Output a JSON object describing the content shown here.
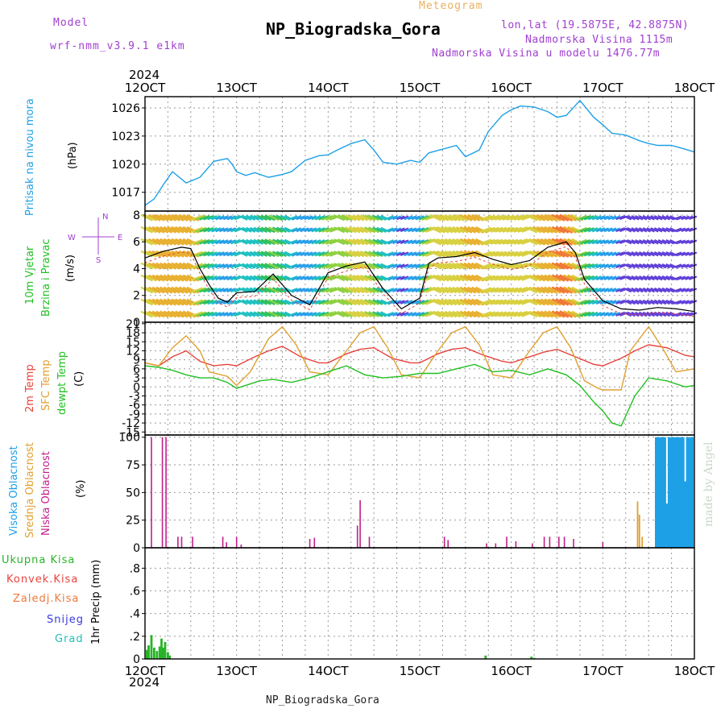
{
  "header": {
    "model_label": "Model",
    "model_name": "wrf-nmm_v3.9.1 e1km",
    "meteogram_label": "Meteogram",
    "title": "NP_Biogradska_Gora",
    "lonlat": "lon,lat (19.5875E, 42.8875N)",
    "altitude": "Nadmorska Visina 1115m",
    "model_altitude": "Nadmorska Visina u modelu 1476.77m",
    "footer_title": "NP_Biogradska_Gora",
    "watermark": "made by Angel",
    "year": "2024"
  },
  "colors": {
    "pressure": "#1ea0e6",
    "temp2m": "#e8423c",
    "sfc": "#e0a030",
    "dewpt": "#20c020",
    "high_cloud": "#1ea0e6",
    "mid_cloud": "#e0a030",
    "low_cloud": "#c0208a",
    "precip_total": "#28b428",
    "precip_conv": "#e8423c",
    "precip_frozen": "#f07838",
    "precip_snow": "#3838e0",
    "precip_hail": "#20c0b8",
    "title_purple": "#a040d0",
    "orange": "#e8b060"
  },
  "x_ticks": [
    "12OCT",
    "13OCT",
    "14OCT",
    "15OCT",
    "16OCT",
    "17OCT",
    "18OCT"
  ],
  "chart_data": [
    {
      "type": "line",
      "panel": "pressure",
      "ylabel_lines": [
        "Pritisak na nivou mora",
        "(hPa)"
      ],
      "yticks": [
        1017,
        1020,
        1023,
        1026
      ],
      "ylim": [
        1015,
        1027.2
      ],
      "xlim_days": [
        12,
        18
      ],
      "series": [
        {
          "x": [
            12.0,
            12.1,
            12.2,
            12.3,
            12.45,
            12.5,
            12.6,
            12.75,
            12.9,
            12.95,
            13.0,
            13.1,
            13.2,
            13.35,
            13.5,
            13.6,
            13.75,
            13.9,
            14.0,
            14.1,
            14.25,
            14.4,
            14.5,
            14.6,
            14.75,
            14.9,
            15.0,
            15.1,
            15.25,
            15.4,
            15.5,
            15.65,
            15.75,
            15.9,
            16.0,
            16.1,
            16.25,
            16.4,
            16.5,
            16.6,
            16.75,
            16.9,
            17.0,
            17.1,
            17.25,
            17.4,
            17.5,
            17.6,
            17.75,
            17.9,
            18.0
          ],
          "y": [
            1015.6,
            1016.3,
            1017.8,
            1019.2,
            1018.0,
            1018.2,
            1018.6,
            1020.3,
            1020.6,
            1020.0,
            1019.2,
            1018.8,
            1019.1,
            1018.6,
            1018.9,
            1019.2,
            1020.4,
            1020.9,
            1021.0,
            1021.5,
            1022.2,
            1022.6,
            1021.5,
            1020.2,
            1020.0,
            1020.4,
            1020.2,
            1021.2,
            1021.6,
            1022.0,
            1020.8,
            1021.5,
            1023.5,
            1025.2,
            1025.8,
            1026.2,
            1026.1,
            1025.6,
            1025.0,
            1025.2,
            1026.8,
            1025.0,
            1024.2,
            1023.3,
            1023.1,
            1022.5,
            1022.2,
            1022.0,
            1022.0,
            1021.6,
            1021.3
          ]
        }
      ]
    },
    {
      "type": "line",
      "panel": "wind",
      "ylabel_lines": [
        "10m Vjetar",
        "Brzina i Pravac",
        "(m/s)"
      ],
      "compass": [
        "N",
        "E",
        "S",
        "W"
      ],
      "yticks": [
        0,
        2,
        4,
        6,
        8
      ],
      "ylim": [
        0,
        8.3
      ],
      "series": [
        {
          "name": "speed",
          "x": [
            12.0,
            12.2,
            12.4,
            12.5,
            12.6,
            12.7,
            12.8,
            12.9,
            13.0,
            13.2,
            13.4,
            13.6,
            13.8,
            14.0,
            14.2,
            14.4,
            14.6,
            14.8,
            15.0,
            15.1,
            15.2,
            15.4,
            15.6,
            15.8,
            16.0,
            16.2,
            16.4,
            16.6,
            16.7,
            16.8,
            17.0,
            17.2,
            17.4,
            17.6,
            17.8,
            18.0
          ],
          "y": [
            4.8,
            5.3,
            5.6,
            5.5,
            4.0,
            2.8,
            1.8,
            1.5,
            2.2,
            2.3,
            3.6,
            2.0,
            1.3,
            3.7,
            4.2,
            4.5,
            2.5,
            1.0,
            1.8,
            4.4,
            4.8,
            4.9,
            5.2,
            4.7,
            4.3,
            4.6,
            5.6,
            6.0,
            5.2,
            3.2,
            1.6,
            1.0,
            0.9,
            1.1,
            1.0,
            0.8
          ]
        }
      ]
    },
    {
      "type": "line",
      "panel": "temperature",
      "ylabel_lines": [
        "2m Temp",
        "SFC Temp",
        "dewpt Temp",
        "(C)"
      ],
      "yticks": [
        -15,
        -12,
        -9,
        -6,
        -3,
        0,
        3,
        6,
        9,
        12,
        15,
        18,
        21
      ],
      "ylim": [
        -16,
        21.5
      ],
      "series": [
        {
          "name": "2m Temp",
          "x": [
            12.0,
            12.15,
            12.3,
            12.45,
            12.6,
            12.75,
            12.9,
            13.0,
            13.2,
            13.35,
            13.5,
            13.7,
            13.9,
            14.0,
            14.2,
            14.35,
            14.5,
            14.7,
            14.9,
            15.0,
            15.2,
            15.35,
            15.5,
            15.7,
            15.9,
            16.0,
            16.2,
            16.35,
            16.5,
            16.7,
            16.9,
            17.0,
            17.2,
            17.35,
            17.5,
            17.7,
            17.9,
            18.0
          ],
          "y": [
            8,
            7,
            10,
            12,
            8.5,
            7,
            7.5,
            7,
            10,
            12,
            13.5,
            10,
            8,
            8,
            11,
            12.5,
            13,
            9.5,
            8,
            8,
            11,
            12.5,
            13,
            10.5,
            8.5,
            8,
            10,
            11.5,
            12.5,
            10,
            7.5,
            7,
            9.5,
            12,
            14,
            13,
            10.5,
            10
          ]
        },
        {
          "name": "SFC Temp",
          "x": [
            12.0,
            12.15,
            12.3,
            12.45,
            12.6,
            12.7,
            12.9,
            13.0,
            13.15,
            13.35,
            13.5,
            13.65,
            13.8,
            14.0,
            14.2,
            14.35,
            14.5,
            14.65,
            14.8,
            15.0,
            15.2,
            15.35,
            15.5,
            15.65,
            15.8,
            16.0,
            16.2,
            16.35,
            16.5,
            16.65,
            16.8,
            16.95,
            17.0,
            17.2,
            17.3,
            17.5,
            17.65,
            17.8,
            18.0
          ],
          "y": [
            8,
            7,
            13,
            17,
            12,
            5,
            3.5,
            0.5,
            5,
            16,
            20,
            14,
            5,
            4,
            12,
            18,
            20,
            13,
            4,
            3,
            12,
            18,
            20,
            14,
            4,
            3,
            12,
            18,
            20,
            13,
            2,
            -0.5,
            -1,
            -1,
            12,
            20,
            13,
            5,
            6
          ]
        },
        {
          "name": "dewpt Temp",
          "x": [
            12.0,
            12.15,
            12.3,
            12.45,
            12.6,
            12.75,
            12.9,
            13.0,
            13.1,
            13.25,
            13.4,
            13.6,
            13.8,
            14.0,
            14.2,
            14.4,
            14.6,
            14.8,
            15.0,
            15.2,
            15.4,
            15.6,
            15.8,
            16.0,
            16.2,
            16.4,
            16.6,
            16.75,
            16.9,
            17.0,
            17.1,
            17.2,
            17.35,
            17.5,
            17.7,
            17.9,
            18.0
          ],
          "y": [
            7,
            6.5,
            5.5,
            4,
            3,
            3,
            1.5,
            -0.5,
            0.5,
            2,
            2.5,
            1.5,
            3,
            5,
            7,
            4,
            3,
            3.5,
            4.5,
            4.5,
            6,
            7.5,
            5,
            5.5,
            4,
            6,
            4,
            0.5,
            -5,
            -8,
            -12,
            -13,
            -3,
            3,
            2,
            0,
            0.5
          ]
        }
      ]
    },
    {
      "type": "bar",
      "panel": "clouds",
      "ylabel_lines": [
        "Visoka Oblacnost",
        "Srednja Oblacnost",
        "Niska Oblacnost",
        "(%)"
      ],
      "yticks": [
        0,
        25,
        50,
        75,
        100
      ],
      "ylim": [
        0,
        102
      ],
      "series": [
        {
          "name": "Niska Oblacnost",
          "x": [
            12.07,
            12.19,
            12.23,
            12.36,
            12.4,
            12.52,
            12.85,
            12.89,
            13.0,
            13.05,
            13.8,
            13.85,
            14.32,
            14.35,
            14.45,
            15.27,
            15.31,
            15.73,
            15.83,
            15.95,
            16.05,
            16.23,
            16.36,
            16.42,
            16.52,
            16.58,
            16.68,
            17.0,
            17.4
          ],
          "y": [
            100,
            100,
            100,
            10,
            10,
            10,
            10,
            5,
            10,
            3,
            8,
            9,
            20,
            43,
            10,
            10,
            7,
            4,
            4,
            10,
            6,
            4,
            10,
            10,
            10,
            10,
            8,
            5,
            3
          ]
        },
        {
          "name": "Srednja Oblacnost",
          "x": [
            17.38,
            17.4,
            17.43,
            17.6,
            17.65,
            17.8,
            17.85
          ],
          "y": [
            42,
            30,
            10,
            100,
            100,
            100,
            100
          ]
        },
        {
          "name": "Visoka Oblacnost",
          "x": [
            17.58,
            17.6,
            17.62,
            17.64,
            17.66,
            17.68,
            17.7,
            17.72,
            17.74,
            17.76,
            17.78,
            17.8,
            17.82,
            17.84,
            17.86,
            17.88,
            17.9,
            17.92,
            17.94,
            17.96,
            17.98
          ],
          "y": [
            100,
            100,
            100,
            100,
            100,
            100,
            40,
            100,
            100,
            100,
            100,
            100,
            100,
            100,
            100,
            100,
            60,
            100,
            100,
            100,
            100
          ]
        }
      ]
    },
    {
      "type": "bar",
      "panel": "precip",
      "ylabel_lines": [
        "1hr Precip (mm)"
      ],
      "legend": [
        "Ukupna Kisa",
        "Konvek.Kisa",
        "Zaledj.Kisa",
        "Snijeg",
        "Grad"
      ],
      "yticks": [
        0,
        0.2,
        0.4,
        0.6,
        0.8
      ],
      "ylim": [
        0,
        0.98
      ],
      "series": [
        {
          "name": "Ukupna Kisa",
          "x": [
            12.02,
            12.04,
            12.07,
            12.1,
            12.13,
            12.16,
            12.18,
            12.2,
            12.22,
            12.25,
            12.27,
            15.72,
            16.22,
            16.25
          ],
          "y": [
            0.08,
            0.12,
            0.21,
            0.1,
            0.07,
            0.11,
            0.18,
            0.1,
            0.15,
            0.06,
            0.03,
            0.03,
            0.02,
            0.01
          ]
        }
      ]
    }
  ]
}
